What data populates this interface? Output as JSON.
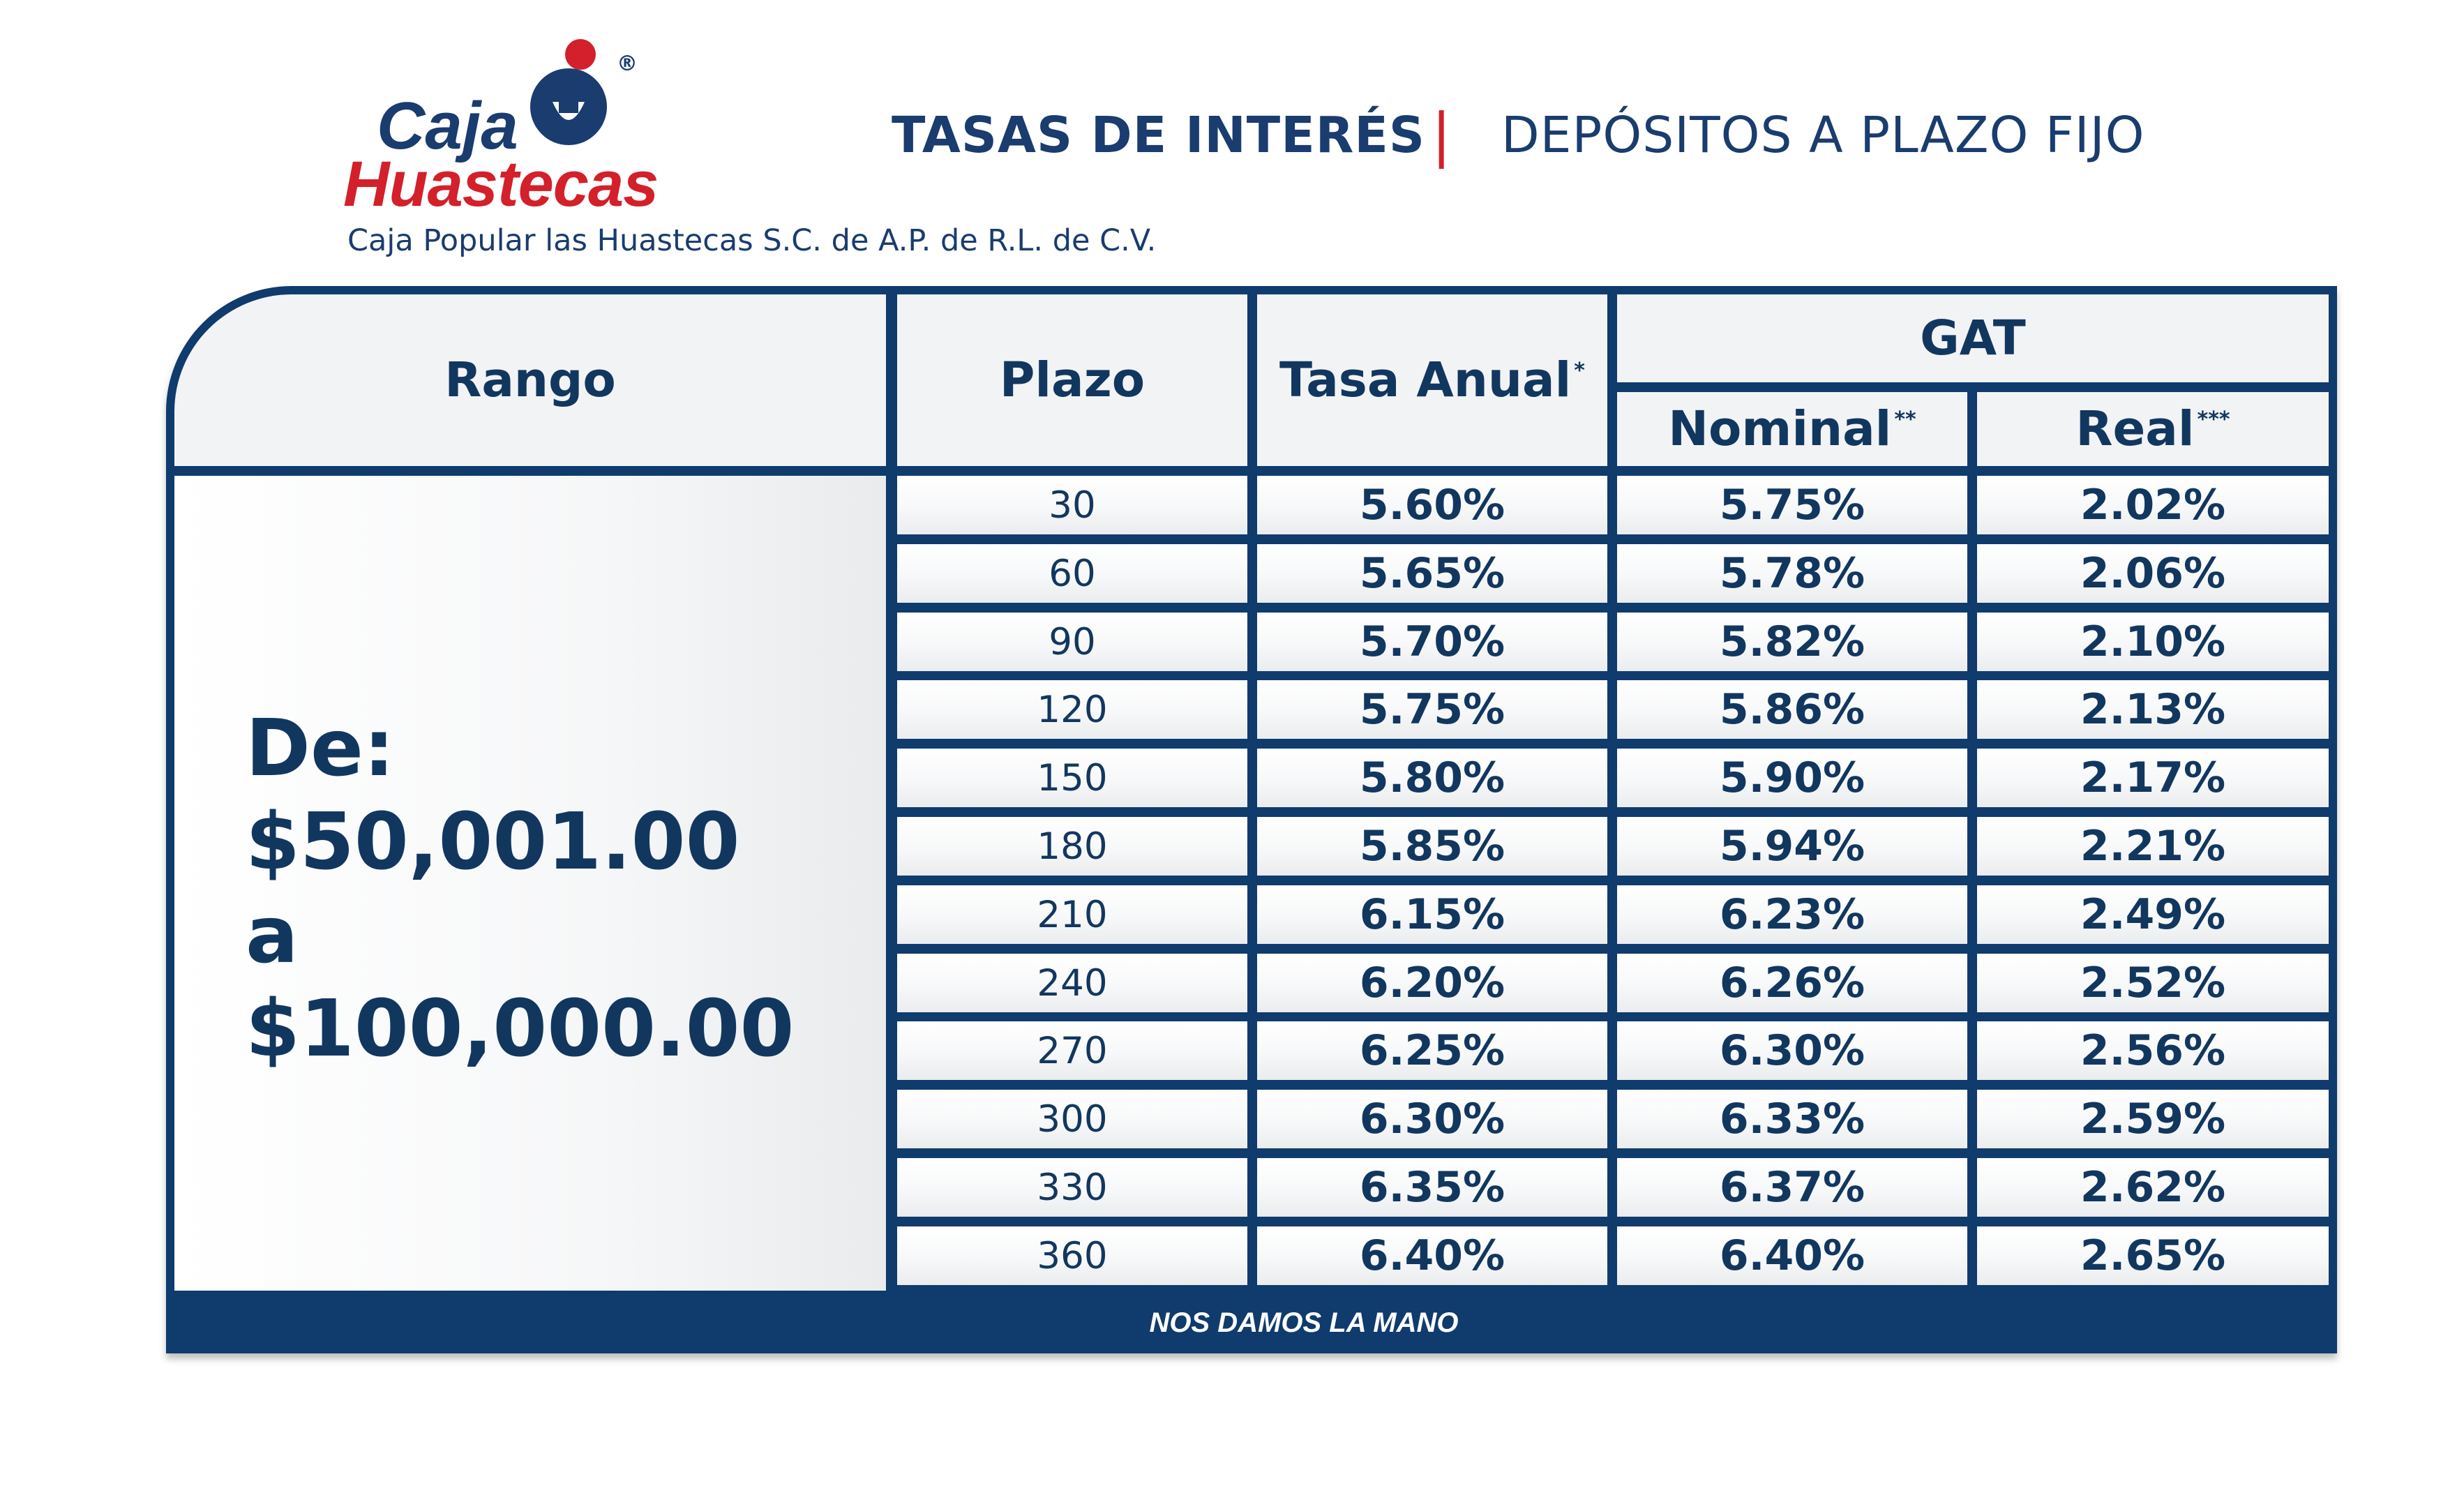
{
  "logo": {
    "line1": "Caja",
    "line2": "Huastecas",
    "registered": "®"
  },
  "subtitle": "Caja Popular las Huastecas S.C. de A.P.  de R.L. de C.V.",
  "header": {
    "title_left": "TASAS DE INTERÉS",
    "separator": "|",
    "title_right": "DEPÓSITOS A PLAZO FIJO"
  },
  "table": {
    "headers": {
      "rango": "Rango",
      "plazo": "Plazo",
      "tasa": "Tasa Anual",
      "tasa_mark": "*",
      "gat": "GAT",
      "nominal": "Nominal",
      "nominal_mark": "**",
      "real": "Real",
      "real_mark": "***"
    },
    "rango_text": "De:\n$50,001.00\na\n$100,000.00",
    "rows": [
      {
        "plazo": "30",
        "tasa": "5.60%",
        "nominal": "5.75%",
        "real": "2.02%"
      },
      {
        "plazo": "60",
        "tasa": "5.65%",
        "nominal": "5.78%",
        "real": "2.06%"
      },
      {
        "plazo": "90",
        "tasa": "5.70%",
        "nominal": "5.82%",
        "real": "2.10%"
      },
      {
        "plazo": "120",
        "tasa": "5.75%",
        "nominal": "5.86%",
        "real": "2.13%"
      },
      {
        "plazo": "150",
        "tasa": "5.80%",
        "nominal": "5.90%",
        "real": "2.17%"
      },
      {
        "plazo": "180",
        "tasa": "5.85%",
        "nominal": "5.94%",
        "real": "2.21%"
      },
      {
        "plazo": "210",
        "tasa": "6.15%",
        "nominal": "6.23%",
        "real": "2.49%"
      },
      {
        "plazo": "240",
        "tasa": "6.20%",
        "nominal": "6.26%",
        "real": "2.52%"
      },
      {
        "plazo": "270",
        "tasa": "6.25%",
        "nominal": "6.30%",
        "real": "2.56%"
      },
      {
        "plazo": "300",
        "tasa": "6.30%",
        "nominal": "6.33%",
        "real": "2.59%"
      },
      {
        "plazo": "330",
        "tasa": "6.35%",
        "nominal": "6.37%",
        "real": "2.62%"
      },
      {
        "plazo": "360",
        "tasa": "6.40%",
        "nominal": "6.40%",
        "real": "2.65%"
      }
    ],
    "footer": "NOS DAMOS LA MANO"
  },
  "colors": {
    "navy": "#0f3b6d",
    "text": "#12375f",
    "brand_red": "#d3202a",
    "white": "#ffffff"
  }
}
